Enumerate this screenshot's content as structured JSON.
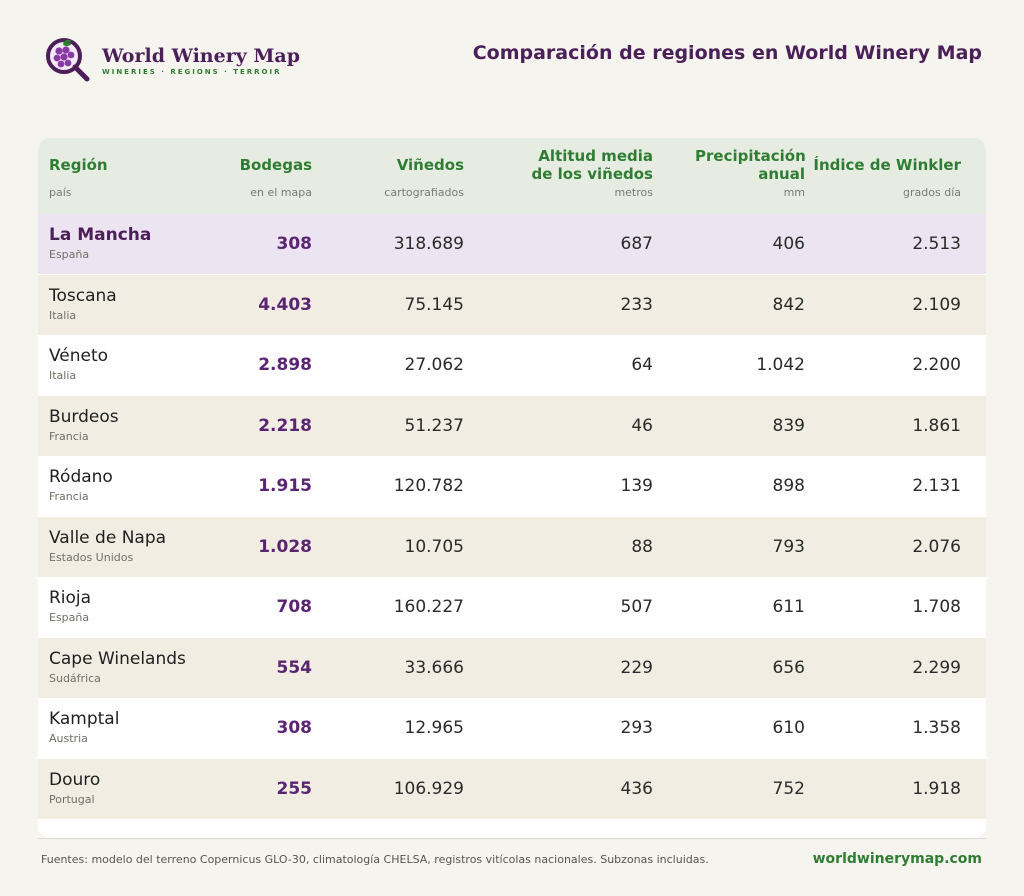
{
  "brand": {
    "name": "World Winery Map",
    "tagline": "WINERIES · REGIONS · TERROIR",
    "colors": {
      "primary": "#4b1f58",
      "accent": "#2f7d32",
      "highlight": "#ede4f1"
    },
    "icon": "grape-magnifier-icon"
  },
  "page": {
    "title": "Comparación de regiones en World Winery Map"
  },
  "table": {
    "columns": [
      {
        "label": "Región",
        "sub": "país"
      },
      {
        "label": "Bodegas",
        "sub": "en el mapa"
      },
      {
        "label": "Viñedos",
        "sub": "cartografiados"
      },
      {
        "label": "Altitud media de los viñedos",
        "sub": "metros"
      },
      {
        "label": "Precipitación anual",
        "sub": "mm"
      },
      {
        "label": "Índice de Winkler",
        "sub": "grados día"
      }
    ],
    "rows": [
      {
        "region": "La Mancha",
        "country": "España",
        "bodegas": "308",
        "vinedos": "318.689",
        "altitud": "687",
        "precip": "406",
        "winkler": "2.513",
        "highlight": true
      },
      {
        "region": "Toscana",
        "country": "Italia",
        "bodegas": "4.403",
        "vinedos": "75.145",
        "altitud": "233",
        "precip": "842",
        "winkler": "2.109"
      },
      {
        "region": "Véneto",
        "country": "Italia",
        "bodegas": "2.898",
        "vinedos": "27.062",
        "altitud": "64",
        "precip": "1.042",
        "winkler": "2.200"
      },
      {
        "region": "Burdeos",
        "country": "Francia",
        "bodegas": "2.218",
        "vinedos": "51.237",
        "altitud": "46",
        "precip": "839",
        "winkler": "1.861"
      },
      {
        "region": "Ródano",
        "country": "Francia",
        "bodegas": "1.915",
        "vinedos": "120.782",
        "altitud": "139",
        "precip": "898",
        "winkler": "2.131"
      },
      {
        "region": "Valle de Napa",
        "country": "Estados Unidos",
        "bodegas": "1.028",
        "vinedos": "10.705",
        "altitud": "88",
        "precip": "793",
        "winkler": "2.076"
      },
      {
        "region": "Rioja",
        "country": "España",
        "bodegas": "708",
        "vinedos": "160.227",
        "altitud": "507",
        "precip": "611",
        "winkler": "1.708"
      },
      {
        "region": "Cape Winelands",
        "country": "Sudáfrica",
        "bodegas": "554",
        "vinedos": "33.666",
        "altitud": "229",
        "precip": "656",
        "winkler": "2.299"
      },
      {
        "region": "Kamptal",
        "country": "Austria",
        "bodegas": "308",
        "vinedos": "12.965",
        "altitud": "293",
        "precip": "610",
        "winkler": "1.358"
      },
      {
        "region": "Douro",
        "country": "Portugal",
        "bodegas": "255",
        "vinedos": "106.929",
        "altitud": "436",
        "precip": "752",
        "winkler": "1.918"
      }
    ]
  },
  "footer": {
    "sources": "Fuentes: modelo del terreno Copernicus GLO-30, climatología CHELSA, registros vitícolas nacionales. Subzonas incluidas.",
    "site": "worldwinerymap.com"
  }
}
